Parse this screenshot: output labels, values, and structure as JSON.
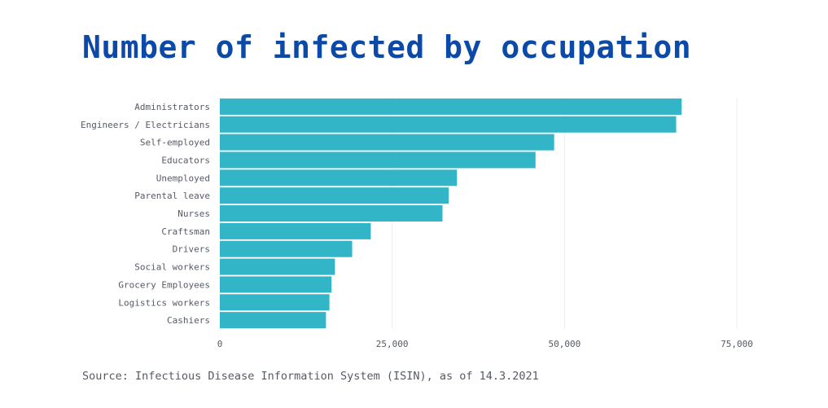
{
  "chart_data": {
    "type": "bar",
    "orientation": "horizontal",
    "title": "Number of infected by occupation",
    "source": "Source: Infectious Disease Information System (ISIN), as of 14.3.2021",
    "categories": [
      "Administrators",
      "Engineers / Electricians",
      "Self-employed",
      "Educators",
      "Unemployed",
      "Parental leave",
      "Nurses",
      "Craftsman",
      "Drivers",
      "Social workers",
      "Grocery Employees",
      "Logistics workers",
      "Cashiers"
    ],
    "values": [
      67000,
      66200,
      48500,
      45800,
      34400,
      33200,
      32300,
      21900,
      19200,
      16700,
      16200,
      15900,
      15400
    ],
    "xlim": [
      0,
      75000
    ],
    "xticks": [
      0,
      25000,
      50000,
      75000
    ],
    "xtick_labels": [
      "0",
      "25,000",
      "50,000",
      "75,000"
    ],
    "grid": true,
    "colors": {
      "bar": "#32b5c6",
      "title": "#0b4aa8",
      "text": "#555a66",
      "grid": "#ececec"
    }
  }
}
